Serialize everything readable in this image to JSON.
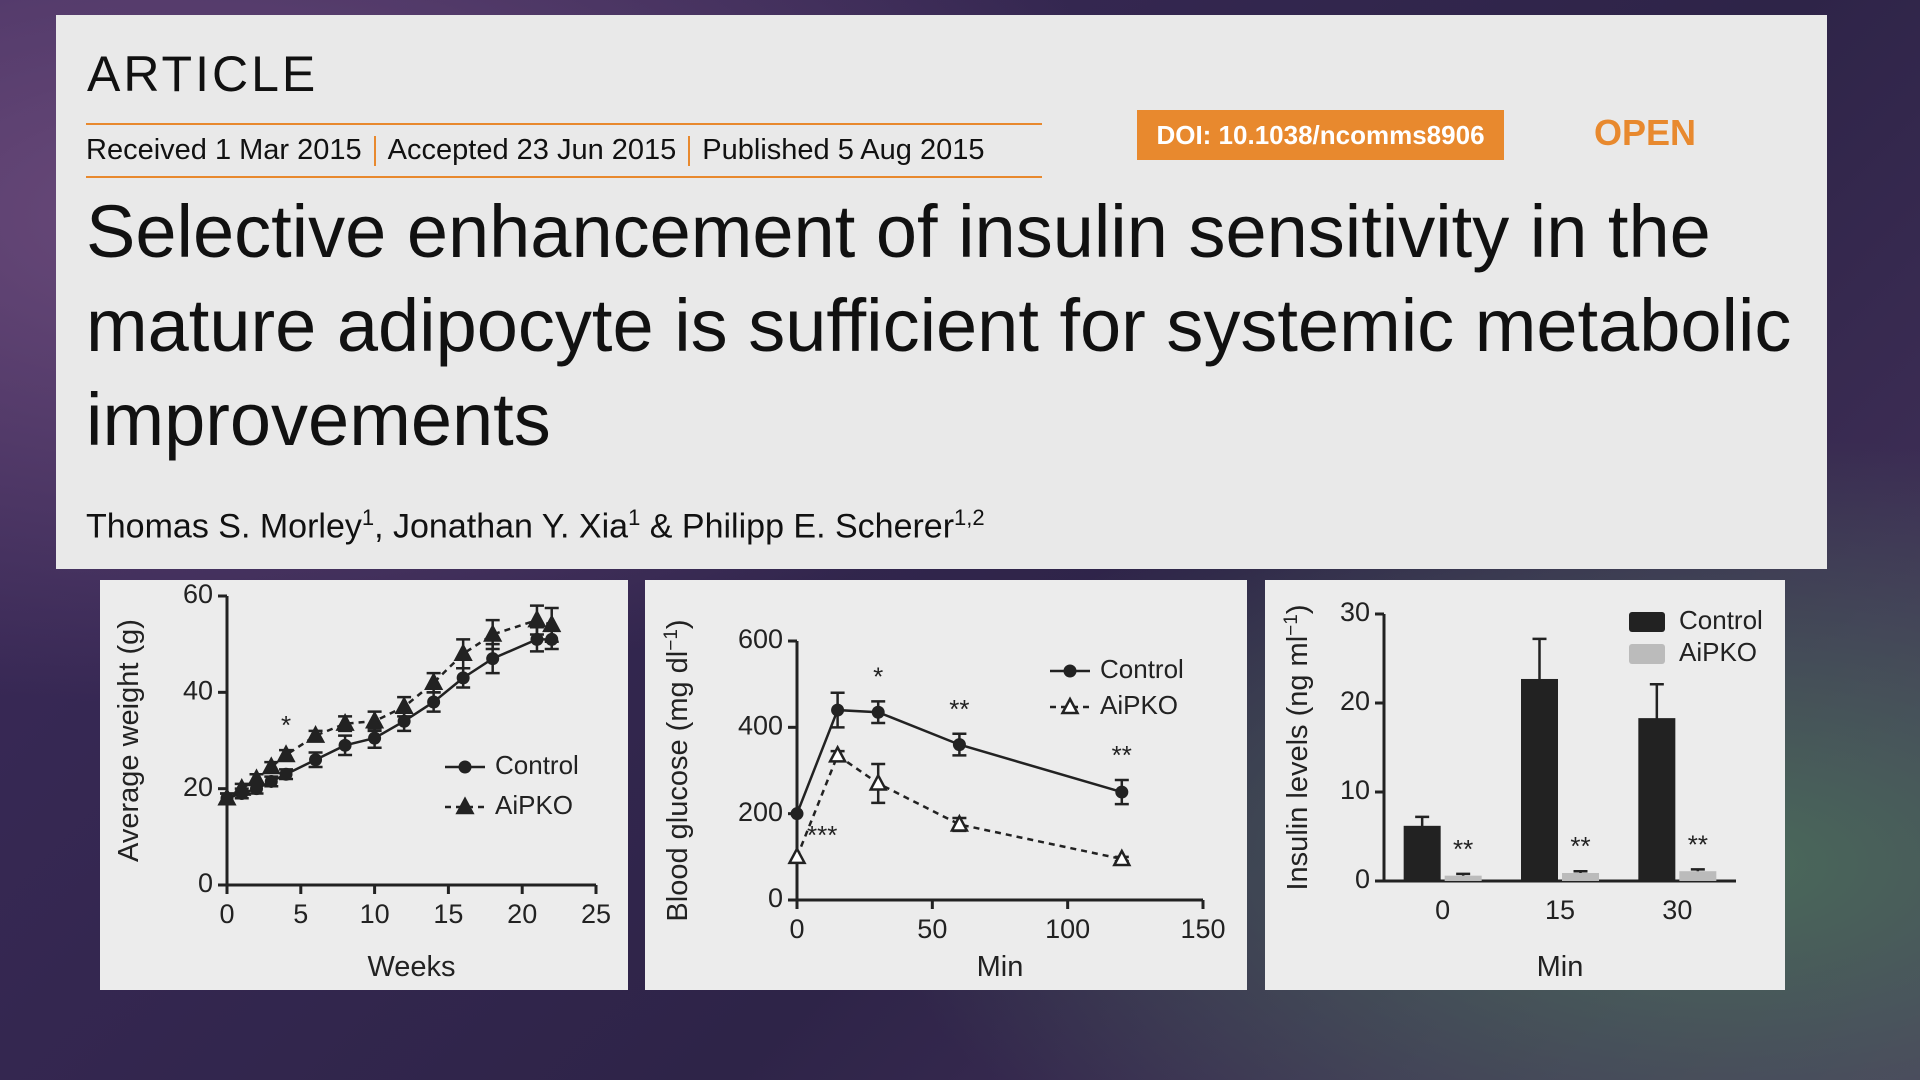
{
  "header": {
    "article_type": "ARTICLE",
    "dates": [
      "Received 1 Mar 2015",
      "Accepted 23 Jun 2015",
      "Published 5 Aug 2015"
    ],
    "doi": "DOI: 10.1038/ncomms8906",
    "access": "OPEN",
    "title": "Selective enhancement of insulin sensitivity in the mature adipocyte is sufficient for systemic metabolic improvements",
    "authors": [
      {
        "name": "Thomas S. Morley",
        "affiliations": "1"
      },
      {
        "name": "Jonathan Y. Xia",
        "affiliations": "1"
      },
      {
        "name": "Philipp E. Scherer",
        "affiliations": "1,2"
      }
    ],
    "author_joiners": [
      ", ",
      " & "
    ]
  },
  "chart_data": [
    {
      "type": "line",
      "x_label": "Weeks",
      "y_label": {
        "text": "Average weight (g)"
      },
      "x": [
        0,
        1,
        2,
        3,
        4,
        6,
        8,
        10,
        12,
        14,
        16,
        18,
        21,
        22
      ],
      "xlim": [
        0,
        25
      ],
      "xticks": [
        0,
        5,
        10,
        15,
        20,
        25
      ],
      "ylim": [
        0,
        60
      ],
      "yticks": [
        0,
        20,
        40,
        60
      ],
      "series": [
        {
          "name": "Control",
          "color": "#222222",
          "marker": "circle",
          "line_style": "solid",
          "values": [
            18,
            19,
            20,
            21.5,
            23,
            26,
            29,
            30.5,
            34,
            38,
            43,
            47,
            51,
            51
          ],
          "errors": [
            1,
            1,
            1,
            1,
            1,
            1.5,
            2,
            2,
            2,
            2,
            2,
            3,
            2.5,
            2
          ]
        },
        {
          "name": "AiPKO",
          "color": "#222222",
          "marker": "triangle",
          "line_style": "dashed",
          "values": [
            18,
            20,
            22,
            24.5,
            27,
            31,
            33.5,
            34,
            37,
            42,
            48,
            52,
            55,
            54
          ],
          "errors": [
            1,
            1,
            1,
            1,
            1,
            1,
            1.5,
            2,
            2,
            2,
            3,
            3,
            3,
            3.5
          ],
          "annotations": [
            null,
            null,
            null,
            null,
            "*",
            null,
            null,
            null,
            null,
            null,
            null,
            null,
            null,
            null
          ]
        }
      ]
    },
    {
      "type": "line",
      "x_label": "Min",
      "y_label": {
        "text": "Blood glucose (mg dl",
        "superscript": "−1",
        "suffix": ")"
      },
      "x": [
        0,
        15,
        30,
        60,
        120
      ],
      "xlim": [
        0,
        150
      ],
      "xticks": [
        0,
        50,
        100,
        150
      ],
      "ylim": [
        0,
        600
      ],
      "yticks": [
        0,
        200,
        400,
        600
      ],
      "series": [
        {
          "name": "Control",
          "color": "#222222",
          "marker": "circle",
          "line_style": "solid",
          "values": [
            200,
            440,
            435,
            360,
            250
          ],
          "errors": [
            0,
            40,
            25,
            25,
            28
          ],
          "annotations": [
            null,
            null,
            "*",
            "**",
            "**"
          ]
        },
        {
          "name": "AiPKO",
          "color": "#222222",
          "marker": "triangle-open",
          "line_style": "dashed",
          "values": [
            100,
            335,
            270,
            175,
            95
          ],
          "errors": [
            0,
            10,
            45,
            15,
            5
          ],
          "annotations": [
            "***",
            null,
            null,
            null,
            null
          ]
        }
      ]
    },
    {
      "type": "bar",
      "x_label": "Min",
      "y_label": {
        "text": "Insulin levels (ng ml",
        "superscript": "−1",
        "suffix": ")"
      },
      "categories": [
        "0",
        "15",
        "30"
      ],
      "ylim": [
        0,
        30
      ],
      "yticks": [
        0,
        10,
        20,
        30
      ],
      "series": [
        {
          "name": "Control",
          "color": "#222222",
          "values": [
            6.2,
            22.7,
            18.3
          ],
          "errors": [
            1,
            4.5,
            3.8
          ]
        },
        {
          "name": "AiPKO",
          "color": "#bbbbbb",
          "values": [
            0.6,
            0.9,
            1.1
          ],
          "errors": [
            0.2,
            0.2,
            0.2
          ],
          "annotations": [
            "**",
            "**",
            "**"
          ]
        }
      ]
    }
  ]
}
